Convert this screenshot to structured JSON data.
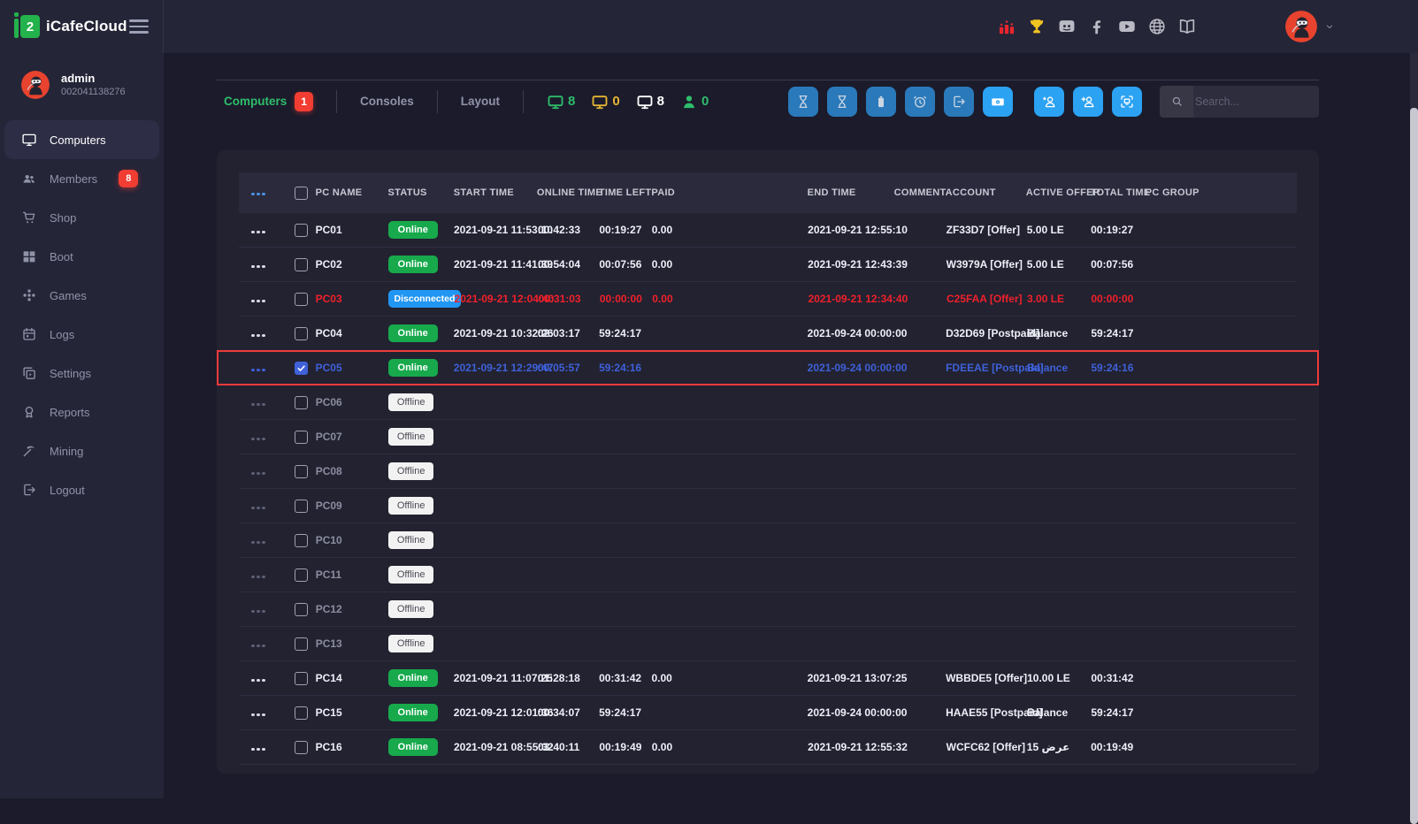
{
  "topbar": {
    "brand": "iCafeCloud",
    "brand_glyph": "2",
    "social": [
      {
        "name": "ranking-icon",
        "icon": "ranking",
        "color": "#e8262d"
      },
      {
        "name": "trophy-icon",
        "icon": "trophy",
        "color": "#f0c420"
      },
      {
        "name": "discord-icon",
        "icon": "discord",
        "color": "#b9bac4"
      },
      {
        "name": "facebook-icon",
        "icon": "facebook",
        "color": "#b9bac4"
      },
      {
        "name": "youtube-icon",
        "icon": "youtube",
        "color": "#b9bac4"
      },
      {
        "name": "globe-icon",
        "icon": "globe",
        "color": "#b9bac4"
      },
      {
        "name": "docs-icon",
        "icon": "book",
        "color": "#b9bac4"
      }
    ]
  },
  "sidebar": {
    "user": {
      "name": "admin",
      "id": "002041138276"
    },
    "items": [
      {
        "label": "Computers",
        "icon": "monitor",
        "active": true
      },
      {
        "label": "Members",
        "icon": "members",
        "badge": "8"
      },
      {
        "label": "Shop",
        "icon": "cart"
      },
      {
        "label": "Boot",
        "icon": "windows"
      },
      {
        "label": "Games",
        "icon": "games"
      },
      {
        "label": "Logs",
        "icon": "calendar"
      },
      {
        "label": "Settings",
        "icon": "settings"
      },
      {
        "label": "Reports",
        "icon": "medal"
      },
      {
        "label": "Mining",
        "icon": "pickaxe"
      },
      {
        "label": "Logout",
        "icon": "logout"
      }
    ]
  },
  "tabs": [
    {
      "label": "Computers",
      "badge": "1",
      "active": true
    },
    {
      "label": "Consoles"
    },
    {
      "label": "Layout"
    }
  ],
  "counters": [
    {
      "name": "online-computers-count",
      "icon": "monitor-filled",
      "value": "8",
      "color": "#2ebd6b"
    },
    {
      "name": "warning-computers-count",
      "icon": "monitor-filled",
      "value": "0",
      "color": "#e5b635"
    },
    {
      "name": "total-computers-count",
      "icon": "monitor-filled",
      "value": "8",
      "color": "#ffffff"
    },
    {
      "name": "online-members-count",
      "icon": "person",
      "value": "0",
      "color": "#2ebd6b"
    }
  ],
  "toolbar": [
    {
      "name": "hourglass-button-1",
      "icon": "hourglass",
      "style": "muted",
      "group": 1
    },
    {
      "name": "hourglass-button-2",
      "icon": "hourglass",
      "style": "muted",
      "group": 1
    },
    {
      "name": "battery-button",
      "icon": "battery",
      "style": "muted",
      "group": 1
    },
    {
      "name": "alarm-button",
      "icon": "alarm",
      "style": "muted",
      "group": 1
    },
    {
      "name": "checkout-button",
      "icon": "signout",
      "style": "muted",
      "group": 1
    },
    {
      "name": "cash-payment-button",
      "icon": "cash",
      "style": "bright",
      "group": 1
    },
    {
      "name": "add-member-star-button",
      "icon": "user-star",
      "style": "bright",
      "group": 2
    },
    {
      "name": "add-member-button",
      "icon": "user-plus",
      "style": "bright",
      "group": 2
    },
    {
      "name": "screenshot-button",
      "icon": "screenshot",
      "style": "bright",
      "group": 2
    }
  ],
  "search": {
    "placeholder": "Search..."
  },
  "table": {
    "columns": [
      "PC NAME",
      "STATUS",
      "START TIME",
      "ONLINE TIME",
      "TIME LEFT",
      "PAID",
      "END TIME",
      "COMMENT",
      "ACCOUNT",
      "ACTIVE OFFER",
      "TOTAL TIME",
      "PC GROUP"
    ],
    "rows": [
      {
        "name": "PC01",
        "status": "Online",
        "start": "2021-09-21 11:53:10",
        "online": "00:42:33",
        "left": "00:19:27",
        "paid": "0.00",
        "end": "2021-09-21 12:55:10",
        "comment": "",
        "account": "ZF33D7 [Offer]",
        "offer": "5.00 LE",
        "total": "00:19:27",
        "group": "",
        "state": "normal",
        "checked": false
      },
      {
        "name": "PC02",
        "status": "Online",
        "start": "2021-09-21 11:41:39",
        "online": "00:54:04",
        "left": "00:07:56",
        "paid": "0.00",
        "end": "2021-09-21 12:43:39",
        "comment": "",
        "account": "W3979A [Offer]",
        "offer": "5.00 LE",
        "total": "00:07:56",
        "group": "",
        "state": "normal",
        "checked": false
      },
      {
        "name": "PC03",
        "status": "Disconnected",
        "start": "2021-09-21 12:04:40",
        "online": "00:31:03",
        "left": "00:00:00",
        "paid": "0.00",
        "end": "2021-09-21 12:34:40",
        "comment": "",
        "account": "C25FAA [Offer]",
        "offer": "3.00 LE",
        "total": "00:00:00",
        "group": "",
        "state": "alert",
        "checked": false
      },
      {
        "name": "PC04",
        "status": "Online",
        "start": "2021-09-21 10:32:26",
        "online": "02:03:17",
        "left": "59:24:17",
        "paid": "",
        "end": "2021-09-24 00:00:00",
        "comment": "",
        "account": "D32D69 [Postpaid]",
        "offer": "Balance",
        "total": "59:24:17",
        "group": "",
        "state": "normal",
        "checked": false
      },
      {
        "name": "PC05",
        "status": "Online",
        "start": "2021-09-21 12:29:47",
        "online": "00:05:57",
        "left": "59:24:16",
        "paid": "",
        "end": "2021-09-24 00:00:00",
        "comment": "",
        "account": "FDEEAE [Postpaid]",
        "offer": "Balance",
        "total": "59:24:16",
        "group": "",
        "state": "selected",
        "checked": true
      },
      {
        "name": "PC06",
        "status": "Offline",
        "start": "",
        "online": "",
        "left": "",
        "paid": "",
        "end": "",
        "comment": "",
        "account": "",
        "offer": "",
        "total": "",
        "group": "",
        "state": "offline",
        "checked": false
      },
      {
        "name": "PC07",
        "status": "Offline",
        "start": "",
        "online": "",
        "left": "",
        "paid": "",
        "end": "",
        "comment": "",
        "account": "",
        "offer": "",
        "total": "",
        "group": "",
        "state": "offline",
        "checked": false
      },
      {
        "name": "PC08",
        "status": "Offline",
        "start": "",
        "online": "",
        "left": "",
        "paid": "",
        "end": "",
        "comment": "",
        "account": "",
        "offer": "",
        "total": "",
        "group": "",
        "state": "offline",
        "checked": false
      },
      {
        "name": "PC09",
        "status": "Offline",
        "start": "",
        "online": "",
        "left": "",
        "paid": "",
        "end": "",
        "comment": "",
        "account": "",
        "offer": "",
        "total": "",
        "group": "",
        "state": "offline",
        "checked": false
      },
      {
        "name": "PC10",
        "status": "Offline",
        "start": "",
        "online": "",
        "left": "",
        "paid": "",
        "end": "",
        "comment": "",
        "account": "",
        "offer": "",
        "total": "",
        "group": "",
        "state": "offline",
        "checked": false
      },
      {
        "name": "PC11",
        "status": "Offline",
        "start": "",
        "online": "",
        "left": "",
        "paid": "",
        "end": "",
        "comment": "",
        "account": "",
        "offer": "",
        "total": "",
        "group": "",
        "state": "offline",
        "checked": false
      },
      {
        "name": "PC12",
        "status": "Offline",
        "start": "",
        "online": "",
        "left": "",
        "paid": "",
        "end": "",
        "comment": "",
        "account": "",
        "offer": "",
        "total": "",
        "group": "",
        "state": "offline",
        "checked": false
      },
      {
        "name": "PC13",
        "status": "Offline",
        "start": "",
        "online": "",
        "left": "",
        "paid": "",
        "end": "",
        "comment": "",
        "account": "",
        "offer": "",
        "total": "",
        "group": "",
        "state": "offline",
        "checked": false
      },
      {
        "name": "PC14",
        "status": "Online",
        "start": "2021-09-21 11:07:25",
        "online": "01:28:18",
        "left": "00:31:42",
        "paid": "0.00",
        "end": "2021-09-21 13:07:25",
        "comment": "",
        "account": "WBBDE5 [Offer]",
        "offer": "10.00 LE",
        "total": "00:31:42",
        "group": "",
        "state": "normal",
        "checked": false
      },
      {
        "name": "PC15",
        "status": "Online",
        "start": "2021-09-21 12:01:36",
        "online": "00:34:07",
        "left": "59:24:17",
        "paid": "",
        "end": "2021-09-24 00:00:00",
        "comment": "",
        "account": "HAAE55 [Postpaid]",
        "offer": "Balance",
        "total": "59:24:17",
        "group": "",
        "state": "normal",
        "checked": false
      },
      {
        "name": "PC16",
        "status": "Online",
        "start": "2021-09-21 08:55:32",
        "online": "03:40:11",
        "left": "00:19:49",
        "paid": "0.00",
        "end": "2021-09-21 12:55:32",
        "comment": "",
        "account": "WCFC62 [Offer]",
        "offer": "15 عرض",
        "total": "00:19:49",
        "group": "",
        "state": "normal",
        "checked": false
      }
    ]
  },
  "colors": {
    "accent_green": "#2ebd6b",
    "online_green": "#17a94c",
    "alert_red": "#f0202a",
    "selected_blue": "#3f61d9",
    "badge_red": "#f23d32",
    "disconnected_blue": "#2196f3",
    "toolbar_blue": "#2ba2f2",
    "toolbar_muted_blue": "#2a79ba",
    "warning_yellow": "#e5b635",
    "highlight_border_red": "#ef3b3b"
  }
}
